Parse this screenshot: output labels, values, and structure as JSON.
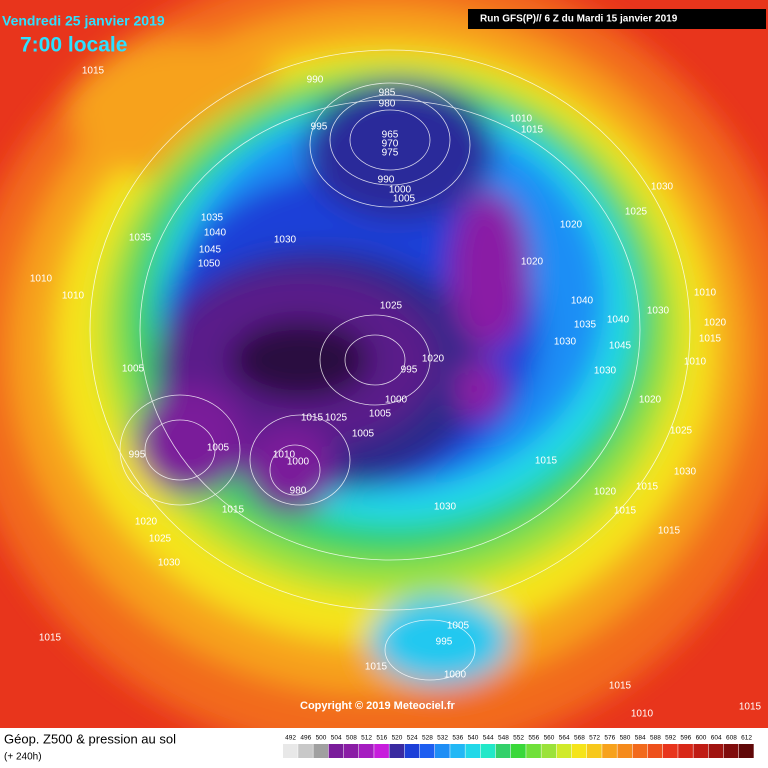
{
  "header": {
    "date": "Vendredi 25 janvier 2019",
    "time": "7:00 locale",
    "run": "Run GFS(P)// 6 Z du Mardi 15 janvier 2019"
  },
  "isobar_labels": [
    1015,
    990,
    985,
    980,
    995,
    965,
    970,
    975,
    990,
    1000,
    1005,
    1010,
    1015,
    1030,
    1025,
    1020,
    1035,
    1040,
    1030,
    1035,
    1045,
    1050,
    1020,
    1010,
    1010,
    1025,
    1040,
    1035,
    1040,
    1030,
    1010,
    1020,
    1015,
    1030,
    1045,
    1020,
    1010,
    1005,
    995,
    1030,
    1000,
    1005,
    1020,
    1015,
    1025,
    1005,
    1025,
    995,
    1005,
    1010,
    1000,
    1015,
    1030,
    980,
    1015,
    1020,
    1030,
    1015,
    1015,
    1020,
    1025,
    1015,
    1030,
    1005,
    995,
    1015,
    1015,
    1000,
    1015,
    1010,
    1015
  ],
  "copyright": "Copyright © 2019 Meteociel.fr",
  "legend": {
    "title": "Géop. Z500 & pression au sol",
    "subtitle": "(+ 240h)",
    "values": [
      492,
      496,
      500,
      504,
      508,
      512,
      516,
      520,
      524,
      528,
      532,
      536,
      540,
      544,
      548,
      552,
      556,
      560,
      564,
      568,
      572,
      576,
      580,
      584,
      588,
      592,
      596,
      600,
      604,
      608,
      612
    ]
  }
}
